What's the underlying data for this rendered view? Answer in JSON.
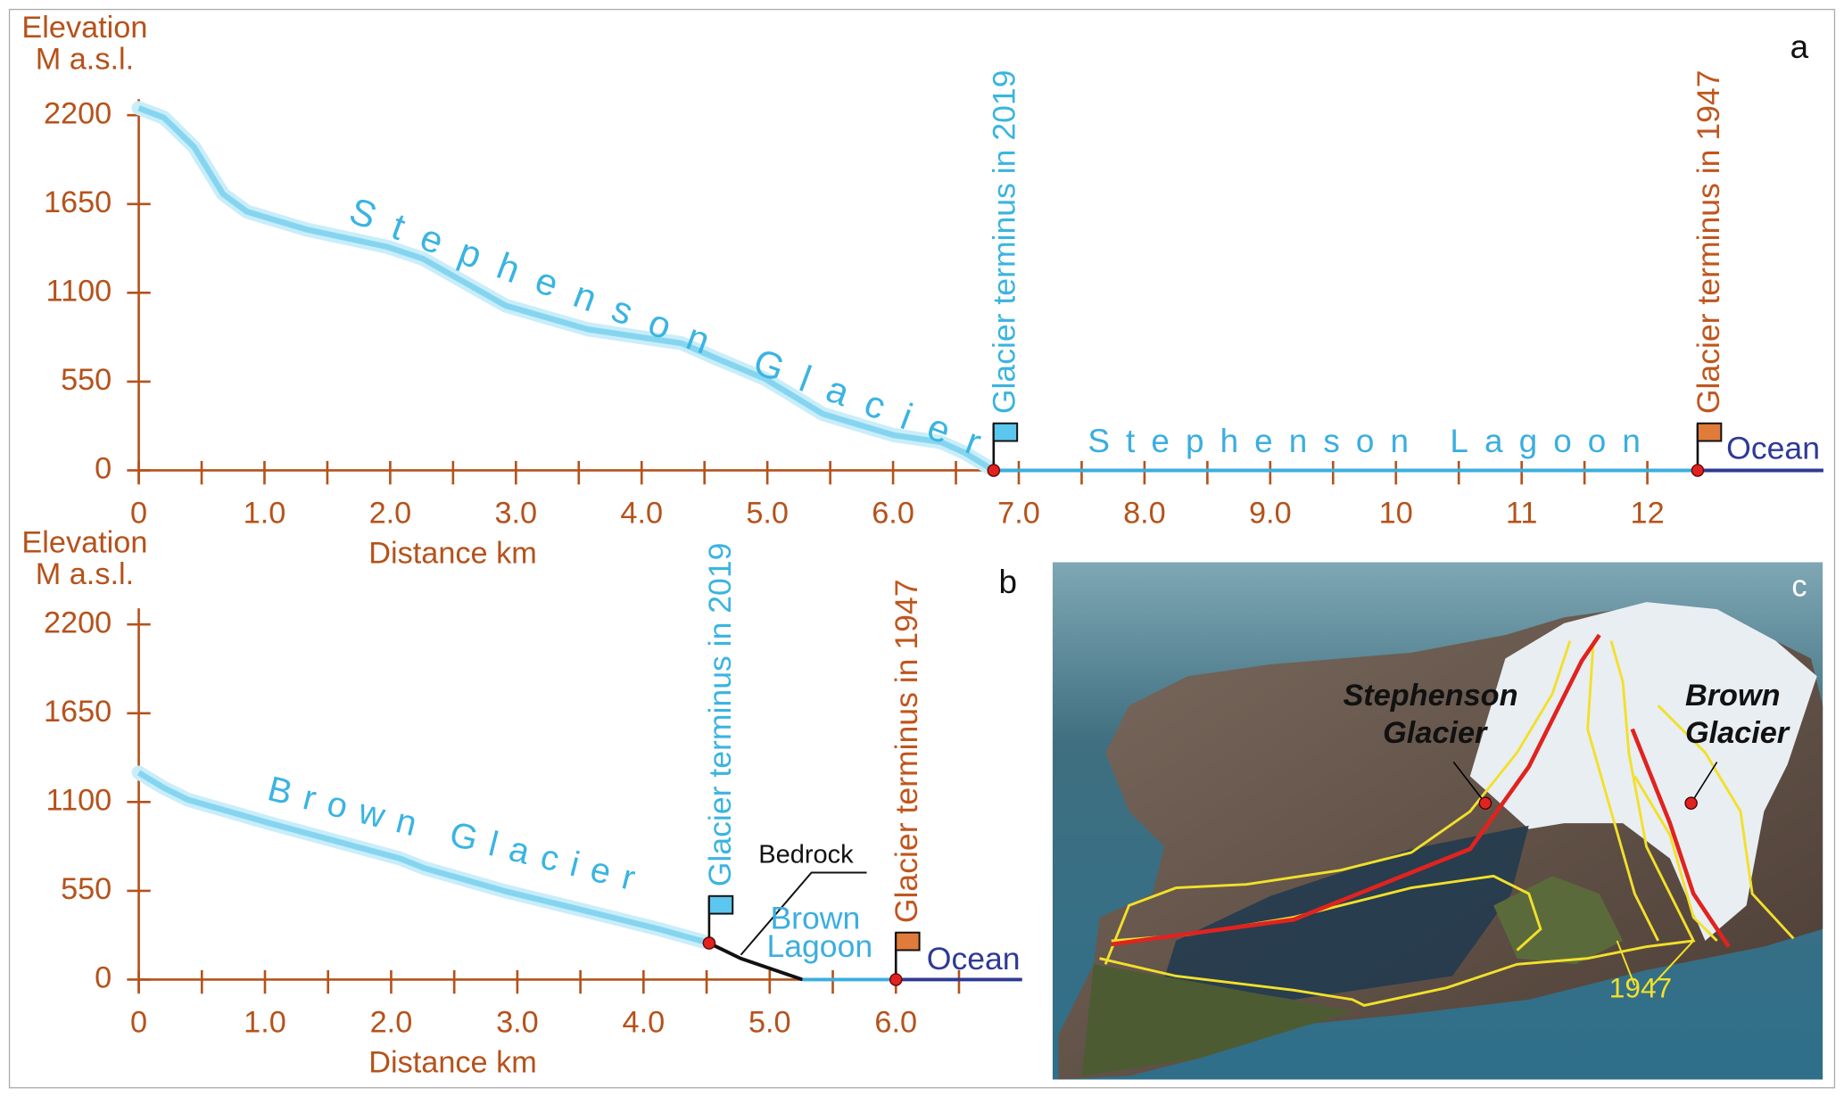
{
  "chart_data": [
    {
      "type": "line",
      "panel_label": "a",
      "y_label": [
        "Elevation",
        "M a.s.l."
      ],
      "x_label": "Distance km",
      "xlim": [
        0,
        13.4
      ],
      "ylim": [
        0,
        2300
      ],
      "xticks": [
        0,
        {
          "value": 1,
          "label": "1.0"
        },
        {
          "value": 2,
          "label": "2.0"
        },
        {
          "value": 3,
          "label": "3.0"
        },
        {
          "value": 4,
          "label": "4.0"
        },
        {
          "value": 5,
          "label": "5.0"
        },
        {
          "value": 6,
          "label": "6.0"
        },
        {
          "value": 7,
          "label": "7.0"
        },
        {
          "value": 8,
          "label": "8.0"
        },
        {
          "value": 9,
          "label": "9.0"
        },
        10,
        11,
        12
      ],
      "minor_xticks": [
        0.5,
        1.5,
        2.5,
        3.5,
        4.5,
        5.5,
        6.5,
        7.5,
        8.5,
        9.5,
        10.5,
        11.5
      ],
      "yticks": [
        0,
        550,
        1100,
        1650,
        2200
      ],
      "series": [
        {
          "name": "Stephenson Glacier",
          "color": "#86d5f0",
          "x": [
            0,
            0.2,
            0.44,
            0.67,
            0.86,
            1.33,
            1.98,
            2.26,
            2.92,
            3.57,
            4.32,
            4.6,
            4.98,
            5.44,
            6.0,
            6.38,
            6.57,
            6.8
          ],
          "values": [
            2244,
            2185,
            2003,
            1712,
            1603,
            1493,
            1384,
            1311,
            1020,
            874,
            787,
            692,
            568,
            350,
            219,
            175,
            109,
            0
          ]
        },
        {
          "name": "Stephenson Lagoon",
          "color": "#3aaee0",
          "x": [
            6.8,
            12.4
          ],
          "values": [
            0,
            0
          ]
        },
        {
          "name": "Ocean",
          "color": "#2e3a94",
          "x": [
            12.4,
            13.4
          ],
          "values": [
            0,
            0
          ]
        }
      ],
      "annotations": [
        {
          "text": "Glacier terminus in 2019",
          "x": 6.8,
          "y": 0,
          "color": "#3bb4e0",
          "flag_color": "#5bc6ee"
        },
        {
          "text": "Glacier terminus in 1947",
          "x": 12.4,
          "y": 0,
          "color": "#c0561e",
          "flag_color": "#e07b39"
        }
      ]
    },
    {
      "type": "line",
      "panel_label": "b",
      "y_label": [
        "Elevation",
        "M a.s.l."
      ],
      "x_label": "Distance km",
      "xlim": [
        0,
        7.0
      ],
      "ylim": [
        0,
        2300
      ],
      "xticks": [
        0,
        {
          "value": 1,
          "label": "1.0"
        },
        {
          "value": 2,
          "label": "2.0"
        },
        {
          "value": 3,
          "label": "3.0"
        },
        {
          "value": 4,
          "label": "4.0"
        },
        {
          "value": 5,
          "label": "5.0"
        },
        {
          "value": 6,
          "label": "6.0"
        }
      ],
      "minor_xticks": [
        0.5,
        1.5,
        2.5,
        3.5,
        4.5,
        5.5,
        6.5
      ],
      "yticks": [
        0,
        550,
        1100,
        1650,
        2200
      ],
      "series": [
        {
          "name": "Brown Glacier",
          "color": "#86d5f0",
          "x": [
            0,
            0.2,
            0.39,
            1.04,
            2.07,
            2.26,
            2.91,
            3.56,
            4.12,
            4.52
          ],
          "values": [
            1282,
            1187,
            1114,
            968,
            750,
            691,
            546,
            422,
            313,
            226
          ]
        },
        {
          "name": "Bedrock",
          "color": "#111111",
          "x": [
            4.52,
            4.77,
            5.26
          ],
          "values": [
            226,
            131,
            0
          ]
        },
        {
          "name": "Brown Lagoon",
          "color": "#3aaee0",
          "x": [
            5.26,
            6.0
          ],
          "values": [
            0,
            0
          ]
        },
        {
          "name": "Ocean",
          "color": "#2e3a94",
          "x": [
            6.0,
            7.0
          ],
          "values": [
            0,
            0
          ]
        }
      ],
      "annotations": [
        {
          "text": "Glacier terminus in 2019",
          "x": 4.52,
          "y": 226,
          "color": "#3bb4e0",
          "flag_color": "#5bc6ee"
        },
        {
          "text": "Glacier terminus in 1947",
          "x": 6.0,
          "y": 0,
          "color": "#c0561e",
          "flag_color": "#e07b39"
        }
      ]
    }
  ],
  "photo_panel": {
    "label": "c",
    "labels": [
      "Stephenson Glacier",
      "Brown Glacier"
    ],
    "year_label": "1947"
  }
}
